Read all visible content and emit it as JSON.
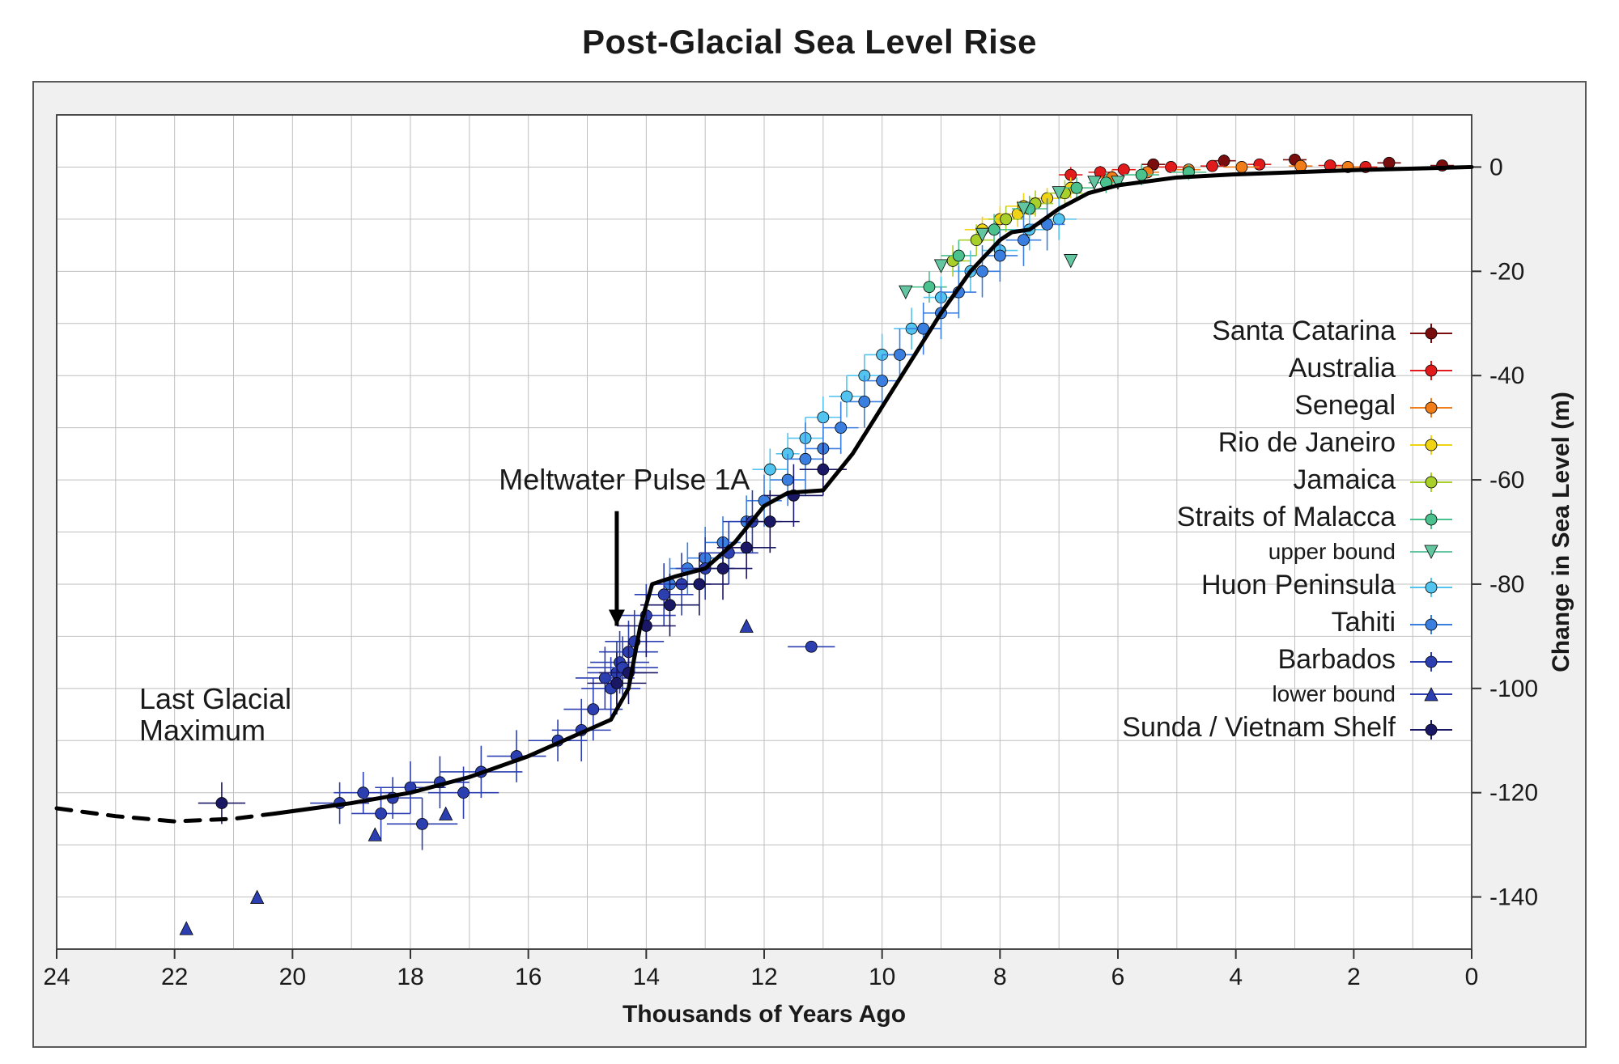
{
  "title": "Post-Glacial Sea Level Rise",
  "title_fontsize": 42,
  "background_color": "#ffffff",
  "panel_bg": "#f0f0f0",
  "panel_border": "#595959",
  "plot_bg": "#ffffff",
  "grid_color": "#bfbfbf",
  "axis_color": "#333333",
  "tick_color": "#1a1a1a",
  "tick_fontsize": 30,
  "x_axis": {
    "label": "Thousands of Years Ago",
    "label_fontsize": 30,
    "min": 0,
    "max": 24,
    "reversed": true,
    "ticks": [
      24,
      22,
      20,
      18,
      16,
      14,
      12,
      10,
      8,
      6,
      4,
      2,
      0
    ],
    "grid_step": 1
  },
  "y_axis": {
    "label": "Change in Sea Level (m)",
    "label_fontsize": 30,
    "side": "right",
    "min": -150,
    "max": 10,
    "ticks": [
      0,
      -20,
      -40,
      -60,
      -80,
      -100,
      -120,
      -140
    ],
    "grid_step": 10
  },
  "annotations": {
    "meltwater": {
      "text": "Meltwater Pulse 1A",
      "x_ka": 16.5,
      "y_m": -60,
      "arrow_to": {
        "x_ka": 14.5,
        "y_m": -88
      }
    },
    "lgm": {
      "line1": "Last Glacial",
      "line2": "Maximum",
      "x_ka": 22.6,
      "y_m": -102
    }
  },
  "dashed_curve": [
    {
      "x": 24.0,
      "y": -123
    },
    {
      "x": 23.0,
      "y": -124.5
    },
    {
      "x": 22.0,
      "y": -125.5
    },
    {
      "x": 21.0,
      "y": -125
    },
    {
      "x": 20.3,
      "y": -124
    }
  ],
  "trend_curve": [
    {
      "x": 20.3,
      "y": -124
    },
    {
      "x": 19.0,
      "y": -122
    },
    {
      "x": 18.0,
      "y": -120
    },
    {
      "x": 17.0,
      "y": -117
    },
    {
      "x": 16.0,
      "y": -113
    },
    {
      "x": 15.0,
      "y": -108
    },
    {
      "x": 14.6,
      "y": -106
    },
    {
      "x": 14.3,
      "y": -100
    },
    {
      "x": 14.1,
      "y": -88
    },
    {
      "x": 13.9,
      "y": -80
    },
    {
      "x": 13.5,
      "y": -78.5
    },
    {
      "x": 13.0,
      "y": -77
    },
    {
      "x": 12.5,
      "y": -72
    },
    {
      "x": 12.0,
      "y": -65
    },
    {
      "x": 11.6,
      "y": -62.5
    },
    {
      "x": 11.0,
      "y": -62
    },
    {
      "x": 10.5,
      "y": -55
    },
    {
      "x": 10.0,
      "y": -46
    },
    {
      "x": 9.5,
      "y": -37
    },
    {
      "x": 9.0,
      "y": -28
    },
    {
      "x": 8.5,
      "y": -20
    },
    {
      "x": 8.0,
      "y": -14
    },
    {
      "x": 7.8,
      "y": -12.5
    },
    {
      "x": 7.5,
      "y": -12
    },
    {
      "x": 7.0,
      "y": -8
    },
    {
      "x": 6.5,
      "y": -5
    },
    {
      "x": 6.0,
      "y": -3.5
    },
    {
      "x": 5.0,
      "y": -2
    },
    {
      "x": 4.0,
      "y": -1.4
    },
    {
      "x": 3.0,
      "y": -1
    },
    {
      "x": 2.0,
      "y": -0.6
    },
    {
      "x": 1.0,
      "y": -0.3
    },
    {
      "x": 0.0,
      "y": 0
    }
  ],
  "trend_width": 5,
  "trend_color": "#000000",
  "dashed_dash": "18 14",
  "series": [
    {
      "name": "Santa Catarina",
      "color": "#7a0d0d",
      "marker": "circle",
      "points": [
        {
          "x": 5.4,
          "y": 0.5,
          "ex": 0.2,
          "ey": 1
        },
        {
          "x": 4.2,
          "y": 1.2,
          "ex": 0.2,
          "ey": 1.2
        },
        {
          "x": 3.0,
          "y": 1.4,
          "ex": 0.2,
          "ey": 1
        },
        {
          "x": 1.4,
          "y": 0.8,
          "ex": 0.2,
          "ey": 1
        },
        {
          "x": 0.5,
          "y": 0.3,
          "ex": 0.2,
          "ey": 1
        }
      ]
    },
    {
      "name": "Australia",
      "color": "#e11b1b",
      "marker": "circle",
      "points": [
        {
          "x": 6.8,
          "y": -1.5,
          "ex": 0.2,
          "ey": 1.5
        },
        {
          "x": 6.3,
          "y": -1,
          "ex": 0.2,
          "ey": 1.2
        },
        {
          "x": 5.9,
          "y": -0.5,
          "ex": 0.2,
          "ey": 1.2
        },
        {
          "x": 5.1,
          "y": 0,
          "ex": 0.2,
          "ey": 1
        },
        {
          "x": 4.4,
          "y": 0.2,
          "ex": 0.2,
          "ey": 1
        },
        {
          "x": 3.6,
          "y": 0.5,
          "ex": 0.2,
          "ey": 1
        },
        {
          "x": 2.4,
          "y": 0.3,
          "ex": 0.2,
          "ey": 1
        },
        {
          "x": 1.8,
          "y": 0,
          "ex": 0.2,
          "ey": 1
        }
      ]
    },
    {
      "name": "Senegal",
      "color": "#f07d17",
      "marker": "circle",
      "points": [
        {
          "x": 6.1,
          "y": -2,
          "ex": 0.2,
          "ey": 1.5
        },
        {
          "x": 5.5,
          "y": -1,
          "ex": 0.2,
          "ey": 1.2
        },
        {
          "x": 4.8,
          "y": -0.5,
          "ex": 0.2,
          "ey": 1
        },
        {
          "x": 3.9,
          "y": 0,
          "ex": 0.3,
          "ey": 1
        },
        {
          "x": 2.9,
          "y": 0.2,
          "ex": 0.2,
          "ey": 1
        },
        {
          "x": 2.1,
          "y": 0,
          "ex": 0.2,
          "ey": 1
        }
      ]
    },
    {
      "name": "Rio de Janeiro",
      "color": "#f1d316",
      "marker": "circle",
      "points": [
        {
          "x": 8.3,
          "y": -12,
          "ex": 0.3,
          "ey": 2.5
        },
        {
          "x": 8.0,
          "y": -10,
          "ex": 0.3,
          "ey": 2.5
        },
        {
          "x": 7.7,
          "y": -9,
          "ex": 0.3,
          "ey": 2.5
        },
        {
          "x": 7.6,
          "y": -7.5,
          "ex": 0.3,
          "ey": 2.5
        },
        {
          "x": 7.2,
          "y": -6,
          "ex": 0.3,
          "ey": 2
        },
        {
          "x": 6.8,
          "y": -4,
          "ex": 0.3,
          "ey": 2
        }
      ]
    },
    {
      "name": "Jamaica",
      "color": "#a9cf2a",
      "marker": "circle",
      "points": [
        {
          "x": 8.8,
          "y": -18,
          "ex": 0.3,
          "ey": 3
        },
        {
          "x": 8.4,
          "y": -14,
          "ex": 0.3,
          "ey": 3
        },
        {
          "x": 7.9,
          "y": -10,
          "ex": 0.3,
          "ey": 2.5
        },
        {
          "x": 7.4,
          "y": -7,
          "ex": 0.3,
          "ey": 2.5
        },
        {
          "x": 6.9,
          "y": -5,
          "ex": 0.3,
          "ey": 2.5
        }
      ]
    },
    {
      "name": "Straits of Malacca",
      "color": "#4bc18d",
      "marker": "circle",
      "points": [
        {
          "x": 9.2,
          "y": -23,
          "ex": 0.3,
          "ey": 3
        },
        {
          "x": 8.7,
          "y": -17,
          "ex": 0.3,
          "ey": 3
        },
        {
          "x": 8.1,
          "y": -12,
          "ex": 0.3,
          "ey": 3
        },
        {
          "x": 7.5,
          "y": -8,
          "ex": 0.3,
          "ey": 2.5
        },
        {
          "x": 6.7,
          "y": -4,
          "ex": 0.3,
          "ey": 2
        },
        {
          "x": 6.2,
          "y": -3,
          "ex": 0.3,
          "ey": 2
        },
        {
          "x": 5.6,
          "y": -1.5,
          "ex": 0.3,
          "ey": 2
        },
        {
          "x": 4.8,
          "y": -1,
          "ex": 0.3,
          "ey": 1.5
        }
      ]
    },
    {
      "name": "upper bound",
      "color": "#63c6a0",
      "marker": "tri_down",
      "small_label": true,
      "points": [
        {
          "x": 9.6,
          "y": -24
        },
        {
          "x": 9.0,
          "y": -19
        },
        {
          "x": 8.3,
          "y": -13
        },
        {
          "x": 7.6,
          "y": -8
        },
        {
          "x": 7.0,
          "y": -5
        },
        {
          "x": 6.4,
          "y": -3
        },
        {
          "x": 6.0,
          "y": -3
        },
        {
          "x": 6.8,
          "y": -18
        }
      ]
    },
    {
      "name": "Huon Peninsula",
      "color": "#53c4ef",
      "marker": "circle",
      "points": [
        {
          "x": 11.9,
          "y": -58,
          "ex": 0.3,
          "ey": 4
        },
        {
          "x": 11.6,
          "y": -55,
          "ex": 0.2,
          "ey": 4
        },
        {
          "x": 11.3,
          "y": -52,
          "ex": 0.3,
          "ey": 4
        },
        {
          "x": 11.0,
          "y": -48,
          "ex": 0.3,
          "ey": 4
        },
        {
          "x": 10.6,
          "y": -44,
          "ex": 0.3,
          "ey": 4
        },
        {
          "x": 10.3,
          "y": -40,
          "ex": 0.3,
          "ey": 4
        },
        {
          "x": 10.0,
          "y": -36,
          "ex": 0.3,
          "ey": 4
        },
        {
          "x": 9.5,
          "y": -31,
          "ex": 0.3,
          "ey": 4
        },
        {
          "x": 9.0,
          "y": -25,
          "ex": 0.3,
          "ey": 4
        },
        {
          "x": 8.5,
          "y": -20,
          "ex": 0.3,
          "ey": 4
        },
        {
          "x": 8.0,
          "y": -16,
          "ex": 0.3,
          "ey": 4
        },
        {
          "x": 7.5,
          "y": -12,
          "ex": 0.3,
          "ey": 4
        },
        {
          "x": 7.0,
          "y": -10,
          "ex": 0.3,
          "ey": 4
        }
      ]
    },
    {
      "name": "Tahiti",
      "color": "#3a7fe0",
      "marker": "circle",
      "points": [
        {
          "x": 13.6,
          "y": -80,
          "ex": 0.3,
          "ey": 5
        },
        {
          "x": 13.3,
          "y": -77,
          "ex": 0.3,
          "ey": 5
        },
        {
          "x": 13.0,
          "y": -75,
          "ex": 0.3,
          "ey": 6
        },
        {
          "x": 12.7,
          "y": -72,
          "ex": 0.3,
          "ey": 5
        },
        {
          "x": 12.3,
          "y": -68,
          "ex": 0.3,
          "ey": 5
        },
        {
          "x": 12.0,
          "y": -64,
          "ex": 0.3,
          "ey": 5
        },
        {
          "x": 11.6,
          "y": -60,
          "ex": 0.3,
          "ey": 5
        },
        {
          "x": 11.3,
          "y": -56,
          "ex": 0.3,
          "ey": 7
        },
        {
          "x": 11.0,
          "y": -54,
          "ex": 0.3,
          "ey": 5
        },
        {
          "x": 10.7,
          "y": -50,
          "ex": 0.3,
          "ey": 5
        },
        {
          "x": 10.3,
          "y": -45,
          "ex": 0.3,
          "ey": 5
        },
        {
          "x": 10.0,
          "y": -41,
          "ex": 0.3,
          "ey": 5
        },
        {
          "x": 9.7,
          "y": -36,
          "ex": 0.3,
          "ey": 5
        },
        {
          "x": 9.3,
          "y": -31,
          "ex": 0.3,
          "ey": 5
        },
        {
          "x": 9.0,
          "y": -28,
          "ex": 0.3,
          "ey": 5
        },
        {
          "x": 8.7,
          "y": -24,
          "ex": 0.3,
          "ey": 5
        },
        {
          "x": 8.3,
          "y": -20,
          "ex": 0.3,
          "ey": 5
        },
        {
          "x": 8.0,
          "y": -17,
          "ex": 0.3,
          "ey": 5
        },
        {
          "x": 7.6,
          "y": -14,
          "ex": 0.3,
          "ey": 5
        },
        {
          "x": 7.2,
          "y": -11,
          "ex": 0.3,
          "ey": 5
        }
      ]
    },
    {
      "name": "Barbados",
      "color": "#2c3fb0",
      "marker": "circle",
      "points": [
        {
          "x": 19.2,
          "y": -122,
          "ex": 0.5,
          "ey": 4
        },
        {
          "x": 18.8,
          "y": -120,
          "ex": 0.5,
          "ey": 4
        },
        {
          "x": 18.5,
          "y": -124,
          "ex": 0.5,
          "ey": 5
        },
        {
          "x": 18.3,
          "y": -121,
          "ex": 0.5,
          "ey": 4
        },
        {
          "x": 18.0,
          "y": -119,
          "ex": 0.6,
          "ey": 5
        },
        {
          "x": 17.8,
          "y": -126,
          "ex": 0.6,
          "ey": 5
        },
        {
          "x": 17.5,
          "y": -118,
          "ex": 0.5,
          "ey": 5
        },
        {
          "x": 17.1,
          "y": -120,
          "ex": 0.6,
          "ey": 5
        },
        {
          "x": 16.8,
          "y": -116,
          "ex": 0.7,
          "ey": 5
        },
        {
          "x": 16.2,
          "y": -113,
          "ex": 0.5,
          "ey": 5
        },
        {
          "x": 15.5,
          "y": -110,
          "ex": 0.5,
          "ey": 4
        },
        {
          "x": 15.1,
          "y": -108,
          "ex": 0.5,
          "ey": 6
        },
        {
          "x": 14.9,
          "y": -104,
          "ex": 0.5,
          "ey": 6
        },
        {
          "x": 14.7,
          "y": -98,
          "ex": 0.5,
          "ey": 6
        },
        {
          "x": 14.6,
          "y": -100,
          "ex": 0.5,
          "ey": 6
        },
        {
          "x": 14.5,
          "y": -97,
          "ex": 0.5,
          "ey": 6
        },
        {
          "x": 14.45,
          "y": -95,
          "ex": 0.5,
          "ey": 6
        },
        {
          "x": 14.4,
          "y": -96,
          "ex": 0.6,
          "ey": 6
        },
        {
          "x": 14.3,
          "y": -93,
          "ex": 0.5,
          "ey": 6
        },
        {
          "x": 14.2,
          "y": -91,
          "ex": 0.5,
          "ey": 6
        },
        {
          "x": 14.0,
          "y": -86,
          "ex": 0.5,
          "ey": 6
        },
        {
          "x": 13.7,
          "y": -82,
          "ex": 0.5,
          "ey": 6
        },
        {
          "x": 13.4,
          "y": -80,
          "ex": 0.5,
          "ey": 6
        },
        {
          "x": 13.0,
          "y": -77,
          "ex": 0.5,
          "ey": 6
        },
        {
          "x": 12.6,
          "y": -74,
          "ex": 0.5,
          "ey": 6
        },
        {
          "x": 12.2,
          "y": -68,
          "ex": 0.5,
          "ey": 6
        },
        {
          "x": 11.2,
          "y": -92,
          "ex": 0.4,
          "ey": 0
        }
      ]
    },
    {
      "name": "lower bound",
      "color": "#2c3fb0",
      "marker": "tri_up",
      "small_label": true,
      "points": [
        {
          "x": 21.8,
          "y": -146
        },
        {
          "x": 20.6,
          "y": -140
        },
        {
          "x": 18.6,
          "y": -128
        },
        {
          "x": 17.4,
          "y": -124
        },
        {
          "x": 12.3,
          "y": -88
        }
      ]
    },
    {
      "name": "Sunda / Vietnam Shelf",
      "color": "#1a1765",
      "marker": "circle",
      "points": [
        {
          "x": 21.2,
          "y": -122,
          "ex": 0.4,
          "ey": 4
        },
        {
          "x": 14.5,
          "y": -99,
          "ex": 0.5,
          "ey": 6
        },
        {
          "x": 14.3,
          "y": -97,
          "ex": 0.5,
          "ey": 6
        },
        {
          "x": 14.0,
          "y": -88,
          "ex": 0.5,
          "ey": 6
        },
        {
          "x": 13.6,
          "y": -84,
          "ex": 0.5,
          "ey": 6
        },
        {
          "x": 13.1,
          "y": -80,
          "ex": 0.5,
          "ey": 6
        },
        {
          "x": 12.7,
          "y": -77,
          "ex": 0.5,
          "ey": 6
        },
        {
          "x": 12.3,
          "y": -73,
          "ex": 0.5,
          "ey": 6
        },
        {
          "x": 11.9,
          "y": -68,
          "ex": 0.5,
          "ey": 6
        },
        {
          "x": 11.5,
          "y": -63,
          "ex": 0.5,
          "ey": 6
        },
        {
          "x": 11.0,
          "y": -58,
          "ex": 0.4,
          "ey": 5
        }
      ]
    }
  ],
  "marker_radius": 7,
  "error_bar_width": 1.6,
  "legend": {
    "items_fontsize": 34,
    "small_fontsize": 28
  }
}
